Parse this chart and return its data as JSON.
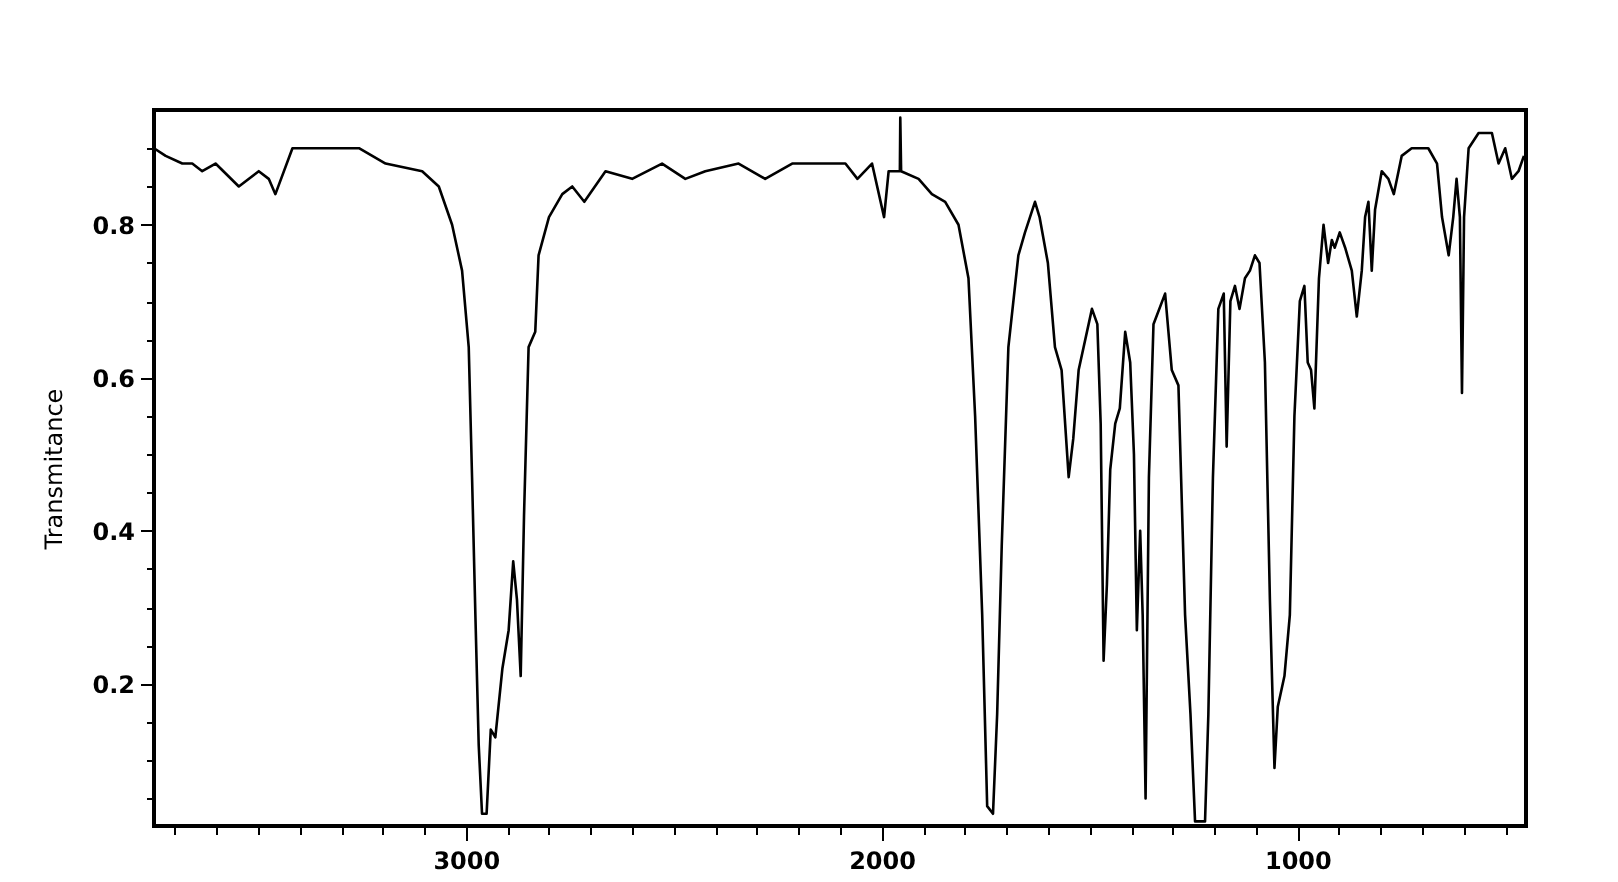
{
  "chart_data": {
    "type": "line",
    "ylabel": "Transmitance",
    "xlim": [
      3750,
      450
    ],
    "ylim": [
      0.014,
      0.95
    ],
    "xticks": [
      {
        "value": 3700,
        "label": null
      },
      {
        "value": 3600,
        "label": null
      },
      {
        "value": 3500,
        "label": null
      },
      {
        "value": 3400,
        "label": null
      },
      {
        "value": 3300,
        "label": null
      },
      {
        "value": 3200,
        "label": null
      },
      {
        "value": 3100,
        "label": null
      },
      3000,
      {
        "value": 2900,
        "label": null
      },
      {
        "value": 2800,
        "label": null
      },
      {
        "value": 2700,
        "label": null
      },
      {
        "value": 2600,
        "label": null
      },
      {
        "value": 2500,
        "label": null
      },
      {
        "value": 2400,
        "label": null
      },
      {
        "value": 2300,
        "label": null
      },
      {
        "value": 2200,
        "label": null
      },
      {
        "value": 2100,
        "label": null
      },
      2000,
      {
        "value": 1900,
        "label": null
      },
      {
        "value": 1800,
        "label": null
      },
      {
        "value": 1700,
        "label": null
      },
      {
        "value": 1600,
        "label": null
      },
      {
        "value": 1500,
        "label": null
      },
      {
        "value": 1400,
        "label": null
      },
      {
        "value": 1300,
        "label": null
      },
      {
        "value": 1200,
        "label": null
      },
      {
        "value": 1100,
        "label": null
      },
      1000,
      {
        "value": 900,
        "label": null
      },
      {
        "value": 800,
        "label": null
      },
      {
        "value": 700,
        "label": null
      },
      {
        "value": 600,
        "label": null
      },
      {
        "value": 500,
        "label": null
      }
    ],
    "yticks": [
      {
        "value": 0.05,
        "label": null
      },
      {
        "value": 0.1,
        "label": null
      },
      {
        "value": 0.15,
        "label": null
      },
      0.2,
      {
        "value": 0.25,
        "label": null
      },
      {
        "value": 0.3,
        "label": null
      },
      {
        "value": 0.35,
        "label": null
      },
      0.4,
      {
        "value": 0.45,
        "label": null
      },
      {
        "value": 0.5,
        "label": null
      },
      {
        "value": 0.55,
        "label": null
      },
      0.6,
      {
        "value": 0.65,
        "label": null
      },
      {
        "value": 0.7,
        "label": null
      },
      {
        "value": 0.75,
        "label": null
      },
      0.8,
      {
        "value": 0.85,
        "label": null
      },
      {
        "value": 0.9,
        "label": null
      }
    ],
    "x": [
      3750,
      3722,
      3682,
      3658,
      3634,
      3602,
      3546,
      3498,
      3474,
      3458,
      3417,
      3377,
      3353,
      3257,
      3193,
      3105,
      3065,
      3033,
      3009,
      2993,
      2985,
      2977,
      2969,
      2961,
      2950,
      2940,
      2929,
      2912,
      2897,
      2886,
      2877,
      2868,
      2860,
      2849,
      2833,
      2825,
      2800,
      2768,
      2744,
      2715,
      2664,
      2600,
      2528,
      2472,
      2424,
      2344,
      2280,
      2215,
      2151,
      2087,
      2058,
      2023,
      1994,
      1983,
      1962,
      1956,
      1955,
      1953,
      1911,
      1879,
      1847,
      1815,
      1791,
      1775,
      1758,
      1746,
      1732,
      1722,
      1711,
      1695,
      1671,
      1655,
      1631,
      1620,
      1600,
      1583,
      1567,
      1550,
      1539,
      1526,
      1494,
      1481,
      1473,
      1466,
      1458,
      1450,
      1438,
      1427,
      1414,
      1402,
      1393,
      1386,
      1378,
      1372,
      1365,
      1357,
      1346,
      1318,
      1302,
      1286,
      1270,
      1257,
      1246,
      1222,
      1214,
      1203,
      1190,
      1177,
      1170,
      1161,
      1150,
      1139,
      1126,
      1114,
      1102,
      1091,
      1078,
      1066,
      1055,
      1047,
      1031,
      1018,
      1007,
      994,
      983,
      975,
      967,
      959,
      948,
      937,
      926,
      917,
      910,
      898,
      885,
      869,
      857,
      845,
      837,
      829,
      821,
      813,
      797,
      781,
      768,
      749,
      725,
      685,
      664,
      652,
      636,
      625,
      617,
      609,
      604,
      599,
      588,
      564,
      532,
      516,
      500,
      484,
      468,
      455
    ],
    "series": [
      {
        "color": "#000000",
        "values": [
          0.9,
          0.89,
          0.88,
          0.88,
          0.87,
          0.88,
          0.85,
          0.87,
          0.86,
          0.84,
          0.9,
          0.9,
          0.9,
          0.9,
          0.88,
          0.87,
          0.85,
          0.8,
          0.74,
          0.64,
          0.47,
          0.29,
          0.12,
          0.03,
          0.03,
          0.14,
          0.13,
          0.22,
          0.27,
          0.36,
          0.31,
          0.21,
          0.42,
          0.64,
          0.66,
          0.76,
          0.81,
          0.84,
          0.85,
          0.83,
          0.87,
          0.86,
          0.88,
          0.86,
          0.87,
          0.88,
          0.86,
          0.88,
          0.88,
          0.88,
          0.86,
          0.88,
          0.81,
          0.87,
          0.87,
          0.87,
          0.94,
          0.87,
          0.86,
          0.84,
          0.83,
          0.8,
          0.73,
          0.55,
          0.29,
          0.04,
          0.03,
          0.16,
          0.38,
          0.64,
          0.76,
          0.79,
          0.83,
          0.81,
          0.75,
          0.64,
          0.61,
          0.47,
          0.52,
          0.61,
          0.69,
          0.67,
          0.54,
          0.23,
          0.33,
          0.48,
          0.54,
          0.56,
          0.66,
          0.62,
          0.5,
          0.27,
          0.4,
          0.29,
          0.05,
          0.47,
          0.67,
          0.71,
          0.61,
          0.59,
          0.29,
          0.16,
          0.02,
          0.02,
          0.16,
          0.47,
          0.69,
          0.71,
          0.51,
          0.7,
          0.72,
          0.69,
          0.73,
          0.74,
          0.76,
          0.75,
          0.62,
          0.31,
          0.09,
          0.17,
          0.21,
          0.29,
          0.55,
          0.7,
          0.72,
          0.62,
          0.61,
          0.56,
          0.73,
          0.8,
          0.75,
          0.78,
          0.77,
          0.79,
          0.77,
          0.74,
          0.68,
          0.74,
          0.81,
          0.83,
          0.74,
          0.82,
          0.87,
          0.86,
          0.84,
          0.89,
          0.9,
          0.9,
          0.88,
          0.81,
          0.76,
          0.81,
          0.86,
          0.81,
          0.58,
          0.81,
          0.9,
          0.92,
          0.92,
          0.88,
          0.9,
          0.86,
          0.87,
          0.89
        ]
      }
    ]
  }
}
